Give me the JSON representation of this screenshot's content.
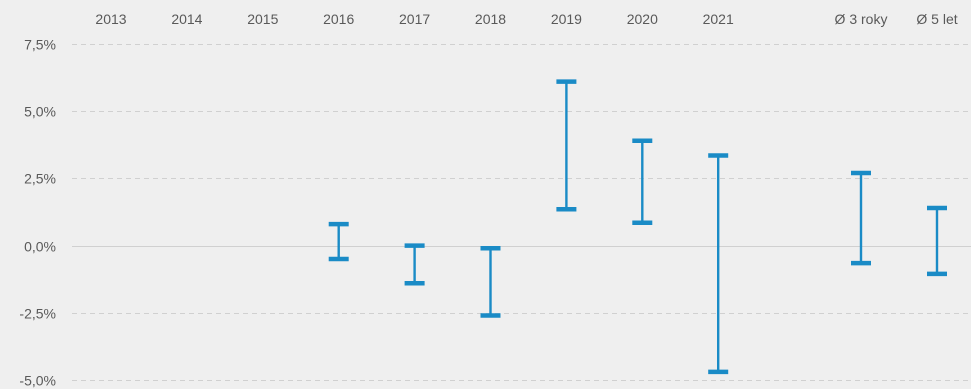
{
  "chart_data": {
    "type": "range",
    "title": "",
    "xlabel": "",
    "ylabel": "",
    "categories": [
      "2013",
      "2014",
      "2015",
      "2016",
      "2017",
      "2018",
      "2019",
      "2020",
      "2021",
      "Ø 3 roky",
      "Ø 5 let"
    ],
    "series": [
      {
        "values": [
          null,
          null,
          null,
          [
            -0.5,
            0.8
          ],
          [
            -1.4,
            0.0
          ],
          [
            -2.6,
            -0.1
          ],
          [
            1.35,
            6.1
          ],
          [
            0.85,
            3.9
          ],
          [
            -4.7,
            3.35
          ],
          [
            -0.65,
            2.7
          ],
          [
            -1.05,
            1.4
          ]
        ]
      }
    ],
    "ylim": [
      -5.0,
      7.5
    ],
    "yticks": [
      7.5,
      5.0,
      2.5,
      0.0,
      -2.5,
      -5.0
    ],
    "ytick_labels": [
      "7,5%",
      "5,0%",
      "2,5%",
      "0,0%",
      "-2,5%",
      "-5,0%"
    ],
    "x_axis_position": "top",
    "grid": true,
    "colors": {
      "series": "#1a8bc6",
      "grid": "#d0d0d0",
      "text": "#595959",
      "background": "#efefef"
    }
  }
}
